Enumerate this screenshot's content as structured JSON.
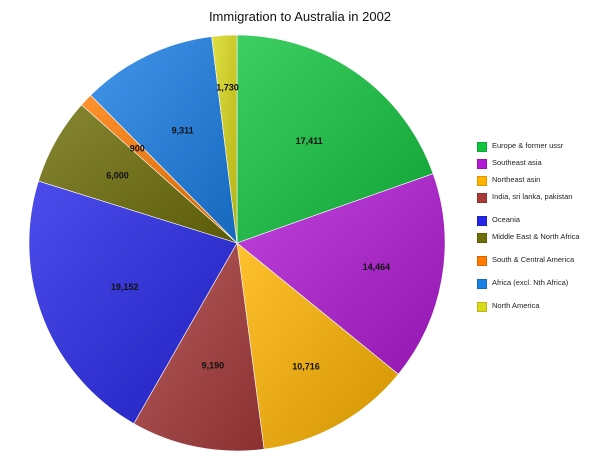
{
  "chart_data": {
    "type": "pie",
    "title": "Immigration to Australia in 2002",
    "categories": [
      "Europe & former ussr",
      "Southeast asia",
      "Northeast asin",
      "India, sri lanka, pakistan",
      "Oceania",
      "Middle East & North Africa",
      "South & Central America",
      "Africa (excl. Nth Africa)",
      "North America"
    ],
    "values": [
      17411,
      14464,
      10716,
      9190,
      19152,
      6000,
      900,
      9311,
      1730
    ],
    "value_labels": [
      "17,411",
      "14,464",
      "10,716",
      "9,190",
      "19,152",
      "6,000",
      "900",
      "9,311",
      "1,730"
    ],
    "colors": [
      "#13c43f",
      "#b21ad6",
      "#ffb300",
      "#a83a3a",
      "#2626e8",
      "#6e6e08",
      "#ff7a00",
      "#1a7fe6",
      "#d9d91a"
    ],
    "start_angle": "12 o'clock",
    "direction": "clockwise",
    "legend_position": "right"
  }
}
